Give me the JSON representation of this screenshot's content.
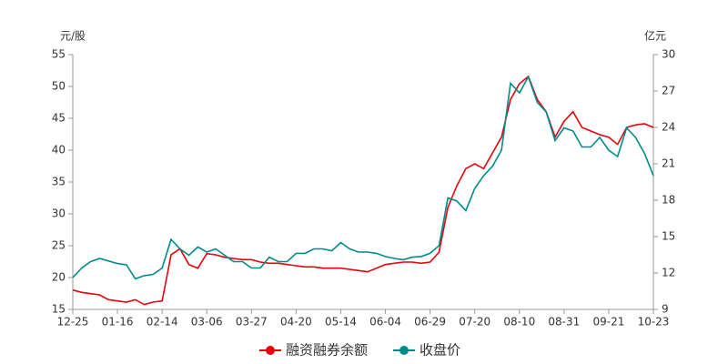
{
  "chart_data": {
    "type": "line",
    "y_label": "元/股",
    "y2_label": "亿元",
    "categories": [
      "12-25",
      null,
      null,
      null,
      null,
      "01-16",
      null,
      null,
      null,
      null,
      "02-14",
      null,
      null,
      null,
      null,
      "03-06",
      null,
      null,
      null,
      null,
      "03-27",
      null,
      null,
      null,
      null,
      "04-20",
      null,
      null,
      null,
      null,
      "05-14",
      null,
      null,
      null,
      null,
      "06-04",
      null,
      null,
      null,
      null,
      "06-29",
      null,
      null,
      null,
      null,
      "07-20",
      null,
      null,
      null,
      null,
      "08-10",
      null,
      null,
      null,
      null,
      "08-31",
      null,
      null,
      null,
      null,
      "09-21",
      null,
      null,
      null,
      null,
      "10-23"
    ],
    "series": [
      {
        "name": "融资融券余额",
        "color": "#e8000b",
        "axis": "y2",
        "values": [
          10.6,
          10.4,
          10.3,
          10.2,
          9.8,
          9.7,
          9.6,
          9.8,
          9.4,
          9.6,
          9.7,
          13.5,
          14.0,
          12.7,
          12.4,
          13.6,
          13.5,
          13.3,
          13.2,
          13.1,
          13.1,
          12.9,
          12.8,
          12.8,
          12.7,
          12.6,
          12.5,
          12.5,
          12.4,
          12.4,
          12.4,
          12.3,
          12.2,
          12.1,
          12.4,
          12.7,
          12.8,
          12.9,
          12.9,
          12.8,
          12.9,
          13.7,
          17.4,
          19.2,
          20.6,
          21.0,
          20.6,
          21.9,
          23.2,
          26.3,
          27.6,
          28.2,
          26.3,
          25.3,
          23.2,
          24.5,
          25.3,
          24.0,
          23.7,
          23.4,
          23.2,
          22.6,
          24.0,
          24.2,
          24.3,
          24.0
        ]
      },
      {
        "name": "收盘价",
        "color": "#008b8b",
        "values": [
          20.0,
          21.5,
          22.5,
          23.0,
          22.6,
          22.2,
          22.0,
          19.8,
          20.3,
          20.5,
          21.5,
          26.0,
          24.5,
          23.5,
          24.8,
          24.0,
          24.5,
          23.5,
          22.5,
          22.5,
          21.5,
          21.5,
          23.2,
          22.5,
          22.5,
          23.8,
          23.8,
          24.5,
          24.5,
          24.2,
          25.5,
          24.5,
          24.0,
          24.0,
          23.8,
          23.3,
          23.0,
          22.8,
          23.2,
          23.3,
          23.8,
          25.0,
          32.5,
          32.0,
          30.5,
          34.0,
          36.0,
          37.5,
          40.0,
          50.5,
          49.0,
          51.5,
          47.5,
          46.0,
          41.5,
          43.5,
          43.0,
          40.5,
          40.5,
          42.0,
          40.0,
          39.0,
          43.5,
          42.0,
          39.5,
          36.0
        ]
      }
    ],
    "ylim": [
      15,
      55
    ],
    "yticks": [
      15,
      20,
      25,
      30,
      35,
      40,
      45,
      50,
      55
    ],
    "y2lim": [
      9,
      30
    ],
    "y2ticks": [
      9,
      12,
      15,
      18,
      21,
      24,
      27,
      30
    ],
    "grid": false,
    "legend": "bottom"
  }
}
